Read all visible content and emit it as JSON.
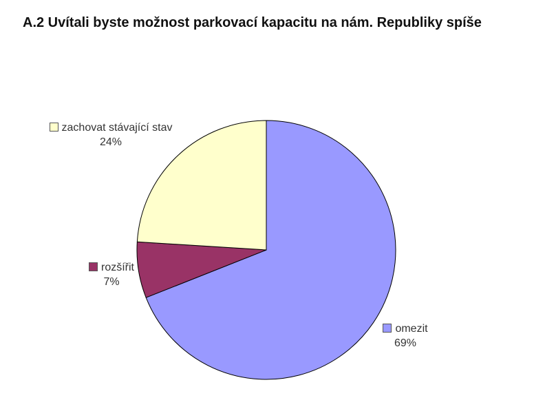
{
  "colors": {
    "background": "#ffffff",
    "label_text": "#333333",
    "title_text": "#111111"
  },
  "chart_data": {
    "type": "pie",
    "title": "A.2 Uvítali byste možnost parkovací kapacitu na nám. Republiky spíše",
    "slices": [
      {
        "label": "omezit",
        "value": 69,
        "pct_label": "69%",
        "color": "#9999FF"
      },
      {
        "label": "rozšířit",
        "value": 7,
        "pct_label": "7%",
        "color": "#993366"
      },
      {
        "label": "zachovat stávající stav",
        "value": 24,
        "pct_label": "24%",
        "color": "#FFFFCC"
      }
    ],
    "start_angle_deg": 0,
    "direction": "clockwise",
    "stroke_color": "#000000",
    "legend_position": "callout-labels-beside-slices"
  }
}
